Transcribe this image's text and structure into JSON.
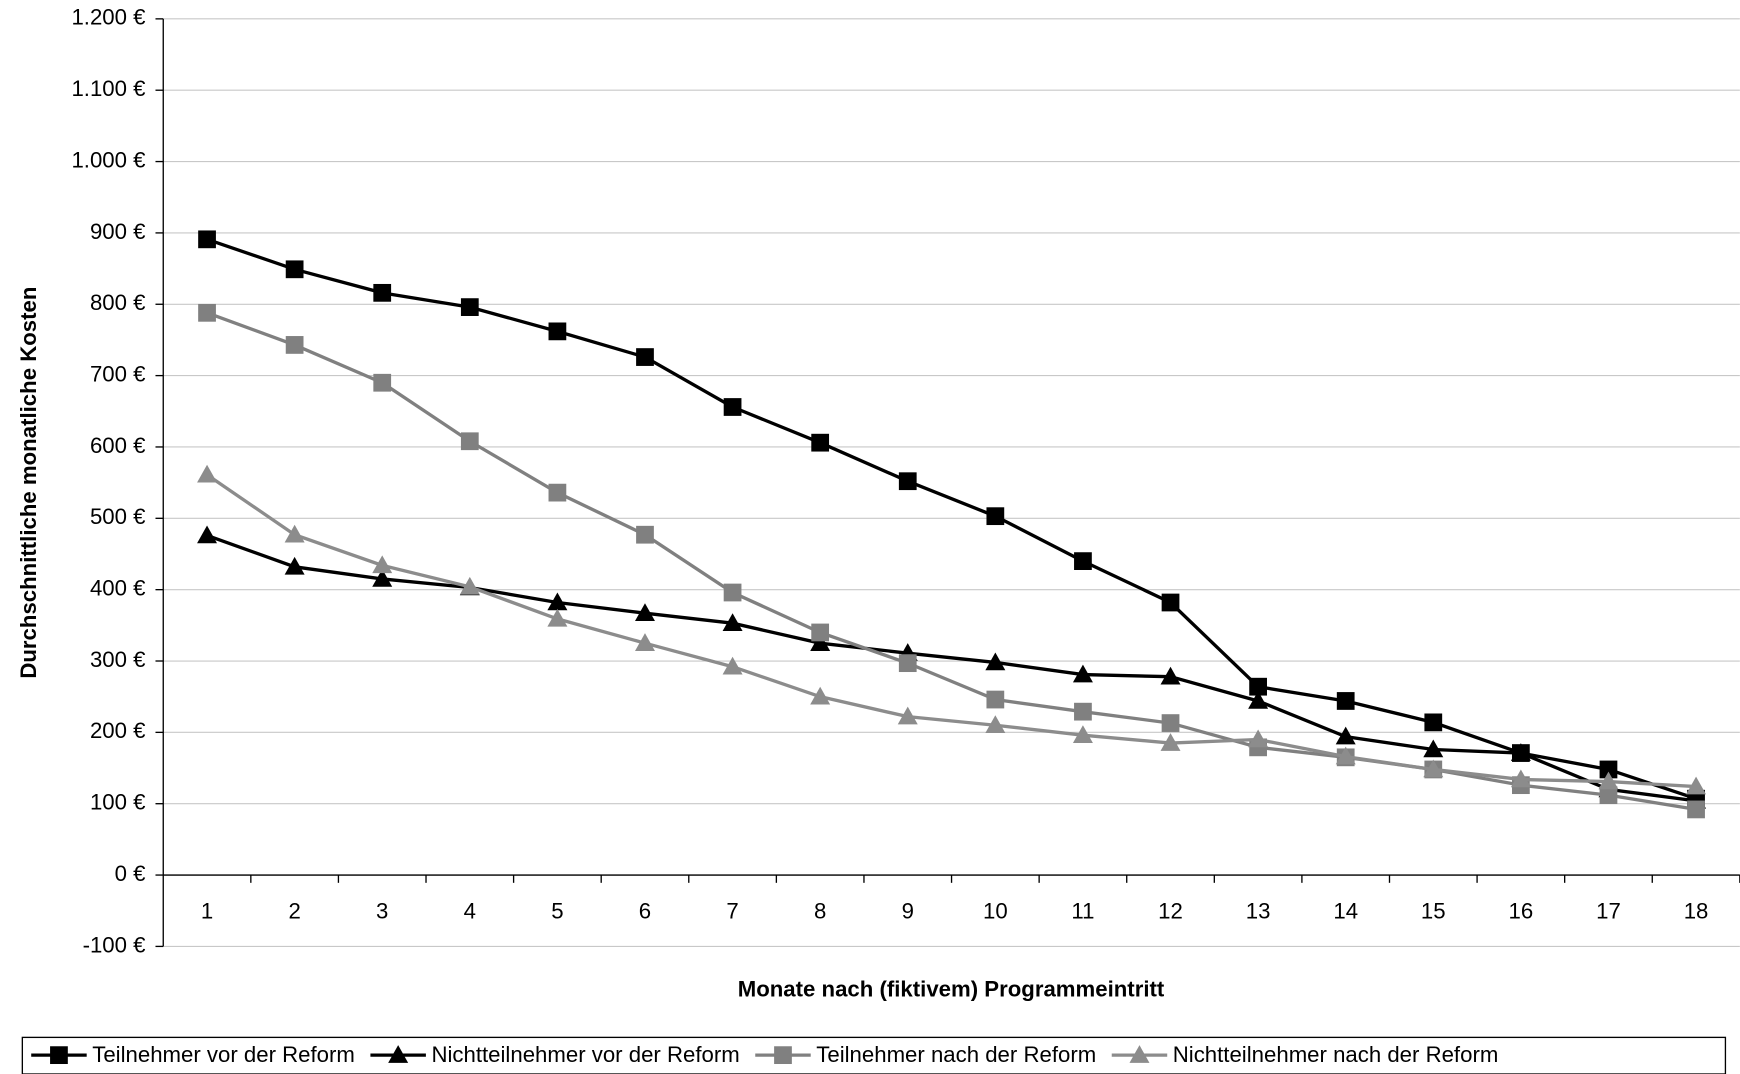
{
  "chart_data": {
    "type": "line",
    "xlabel": "Monate nach (fiktivem) Programmeintritt",
    "ylabel": "Durchschnittliche monatliche Kosten",
    "categories": [
      "1",
      "2",
      "3",
      "4",
      "5",
      "6",
      "7",
      "8",
      "9",
      "10",
      "11",
      "12",
      "13",
      "14",
      "15",
      "16",
      "17",
      "18"
    ],
    "series": [
      {
        "name": "Teilnehmer vor der Reform",
        "color": "#000000",
        "marker": "square",
        "values": [
          891,
          849,
          816,
          796,
          762,
          726,
          656,
          606,
          552,
          503,
          440,
          382,
          264,
          244,
          214,
          171,
          148,
          107
        ]
      },
      {
        "name": "Nichtteilnehmer vor der Reform",
        "color": "#000000",
        "marker": "triangle",
        "values": [
          476,
          432,
          415,
          403,
          382,
          367,
          353,
          325,
          311,
          298,
          281,
          278,
          244,
          194,
          176,
          171,
          120,
          104
        ]
      },
      {
        "name": "Teilnehmer nach der Reform",
        "color": "#808080",
        "marker": "square",
        "values": [
          788,
          743,
          690,
          608,
          536,
          477,
          396,
          340,
          297,
          246,
          229,
          213,
          179,
          165,
          148,
          126,
          112,
          92
        ]
      },
      {
        "name": "Nichtteilnehmer nach der Reform",
        "color": "#8c8c8c",
        "marker": "triangle",
        "values": [
          561,
          477,
          434,
          404,
          359,
          325,
          292,
          250,
          222,
          210,
          196,
          185,
          190,
          166,
          148,
          134,
          131,
          124
        ]
      }
    ],
    "ylim": [
      -100,
      1200
    ],
    "yticks": [
      {
        "value": -100,
        "label": "-100 €"
      },
      {
        "value": 0,
        "label": "0 €"
      },
      {
        "value": 100,
        "label": "100 €"
      },
      {
        "value": 200,
        "label": "200 €"
      },
      {
        "value": 300,
        "label": "300 €"
      },
      {
        "value": 400,
        "label": "400 €"
      },
      {
        "value": 500,
        "label": "500 €"
      },
      {
        "value": 600,
        "label": "600 €"
      },
      {
        "value": 700,
        "label": "700 €"
      },
      {
        "value": 800,
        "label": "800 €"
      },
      {
        "value": 900,
        "label": "900 €"
      },
      {
        "value": 1000,
        "label": "1.000 €"
      },
      {
        "value": 1100,
        "label": "1.100 €"
      },
      {
        "value": 1200,
        "label": "1.200 €"
      }
    ],
    "grid": true,
    "legend": "bottom"
  }
}
